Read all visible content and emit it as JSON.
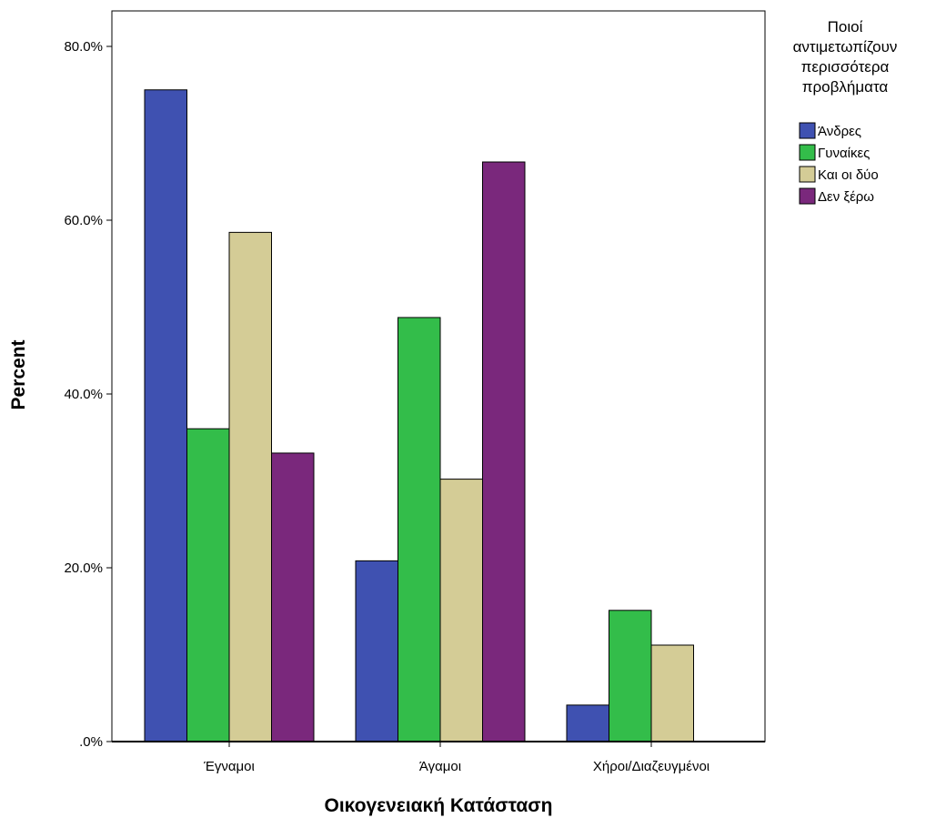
{
  "chart_data": {
    "type": "bar",
    "xlabel": "Οικογενειακή Κατάσταση",
    "ylabel": "Percent",
    "categories": [
      "Έγναμοι",
      "Άγαμοι",
      "Χήροι/Διαζευγμένοι"
    ],
    "ylim": [
      0,
      80
    ],
    "yticks": [
      0,
      20,
      40,
      60,
      80
    ],
    "ytick_labels": [
      ".0%",
      "20.0%",
      "40.0%",
      "60.0%",
      "80.0%"
    ],
    "grid": false,
    "legend": {
      "placement": "right",
      "title_lines": [
        "Ποιοί",
        "αντιμετωπίζουν",
        "περισσότερα",
        "προβλήματα"
      ]
    },
    "series": [
      {
        "name": "Άνδρες",
        "color": "#3f51b1",
        "values": [
          75.0,
          20.8,
          4.2
        ]
      },
      {
        "name": "Γυναίκες",
        "color": "#33bd4a",
        "values": [
          36.0,
          48.8,
          15.1
        ]
      },
      {
        "name": "Και οι δύο",
        "color": "#d4cc96",
        "values": [
          58.6,
          30.2,
          11.1
        ]
      },
      {
        "name": "Δεν ξέρω",
        "color": "#7a287c",
        "values": [
          33.2,
          66.7,
          0
        ]
      }
    ]
  }
}
